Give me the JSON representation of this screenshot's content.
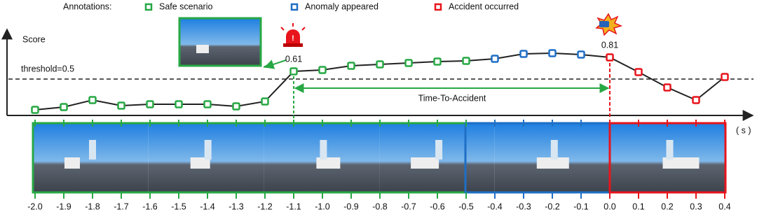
{
  "chart_data": {
    "type": "line",
    "legend_title": "Annotations:",
    "legend": [
      {
        "name": "Safe scenario",
        "color": "#27a844"
      },
      {
        "name": "Anomaly appeared",
        "color": "#1f6fc5"
      },
      {
        "name": "Accident occurred",
        "color": "#e8141c"
      }
    ],
    "ylabel": "Score",
    "xlabel": "( s )",
    "threshold": {
      "value": 0.5,
      "label": "threshold=0.5"
    },
    "annotation": "Time-To-Accident",
    "x": [
      -2.0,
      -1.9,
      -1.8,
      -1.7,
      -1.6,
      -1.5,
      -1.4,
      -1.3,
      -1.2,
      -1.1,
      -1.0,
      -0.9,
      -0.8,
      -0.7,
      -0.6,
      -0.5,
      -0.4,
      -0.3,
      -0.2,
      -0.1,
      0.0,
      0.1,
      0.2,
      0.3,
      0.4
    ],
    "values": [
      0.06,
      0.1,
      0.2,
      0.12,
      0.14,
      0.14,
      0.14,
      0.11,
      0.18,
      0.61,
      0.63,
      0.69,
      0.71,
      0.73,
      0.75,
      0.76,
      0.79,
      0.86,
      0.87,
      0.85,
      0.81,
      0.6,
      0.38,
      0.2,
      0.53
    ],
    "value_labels": [
      null,
      null,
      null,
      null,
      null,
      null,
      null,
      null,
      null,
      "0.61",
      null,
      null,
      null,
      null,
      null,
      null,
      null,
      null,
      null,
      null,
      "0.81",
      null,
      null,
      null,
      null
    ],
    "marker_colors": [
      "#27a844",
      "#27a844",
      "#27a844",
      "#27a844",
      "#27a844",
      "#27a844",
      "#27a844",
      "#27a844",
      "#27a844",
      "#27a844",
      "#27a844",
      "#27a844",
      "#27a844",
      "#27a844",
      "#27a844",
      "#27a844",
      "#1f6fc5",
      "#1f6fc5",
      "#1f6fc5",
      "#1f6fc5",
      "#e8141c",
      "#e8141c",
      "#e8141c",
      "#e8141c",
      "#e8141c"
    ],
    "line_color": "#222222",
    "xlim": [
      -2.0,
      0.4
    ],
    "ylim": [
      0,
      1
    ],
    "xticks": [
      {
        "value": -2.0,
        "label": "-2.0"
      },
      {
        "value": -1.9,
        "label": "-1.9"
      },
      {
        "value": -1.8,
        "label": "-1.8"
      },
      {
        "value": -1.7,
        "label": "-1.7"
      },
      {
        "value": -1.6,
        "label": "-1.6"
      },
      {
        "value": -1.5,
        "label": "-1.5"
      },
      {
        "value": -1.4,
        "label": "-1.4"
      },
      {
        "value": -1.3,
        "label": "-1.3"
      },
      {
        "value": -1.2,
        "label": "-1.2"
      },
      {
        "value": -1.1,
        "label": "-1.1"
      },
      {
        "value": -1.0,
        "label": "-1.0"
      },
      {
        "value": -0.9,
        "label": "-0.9"
      },
      {
        "value": -0.8,
        "label": "-0.8"
      },
      {
        "value": -0.7,
        "label": "-0.7"
      },
      {
        "value": -0.6,
        "label": "-0.6"
      },
      {
        "value": -0.5,
        "label": "-0.5"
      },
      {
        "value": -0.4,
        "label": "-0.4"
      },
      {
        "value": -0.3,
        "label": "-0.3"
      },
      {
        "value": -0.2,
        "label": "-0.2"
      },
      {
        "value": -0.1,
        "label": "-0.1"
      },
      {
        "value": 0.0,
        "label": "0.0"
      },
      {
        "value": 0.1,
        "label": "0.1"
      },
      {
        "value": 0.2,
        "label": "0.2"
      },
      {
        "value": 0.3,
        "label": "0.3"
      },
      {
        "value": 0.4,
        "label": "0.4"
      }
    ]
  }
}
